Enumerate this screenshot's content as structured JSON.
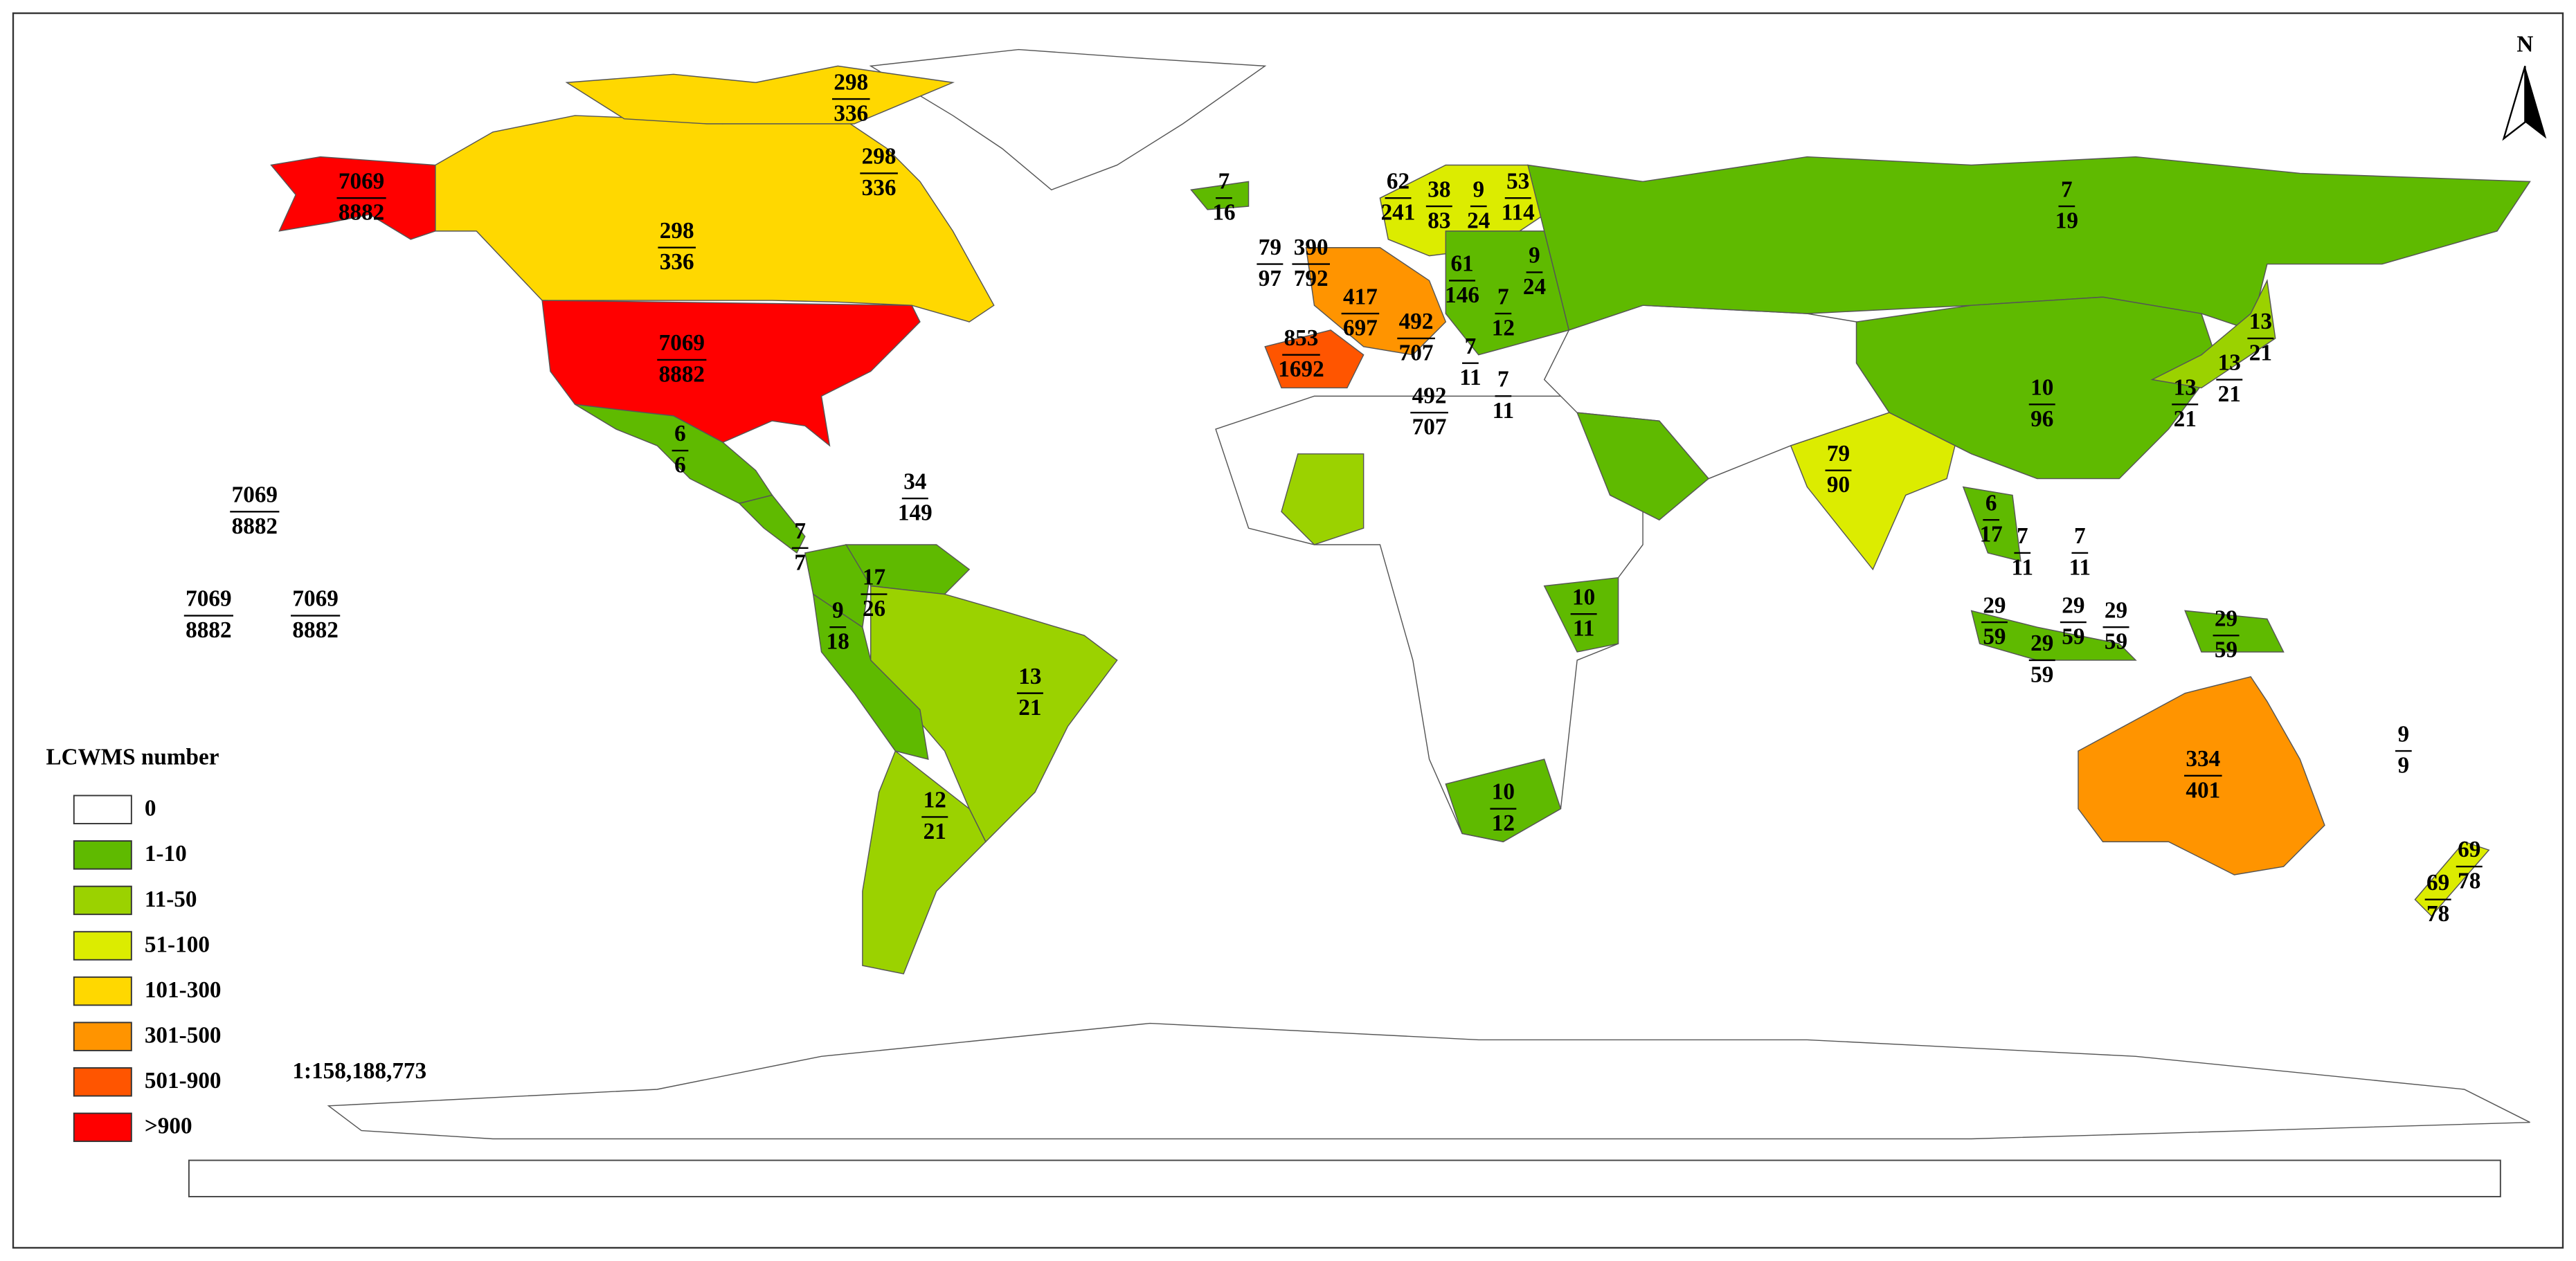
{
  "north": "N",
  "scale": "1:158,188,773",
  "legend": {
    "title": "LCWMS number",
    "items": [
      {
        "label": "0",
        "color": "#ffffff"
      },
      {
        "label": "1-10",
        "color": "#5fba00"
      },
      {
        "label": "11-50",
        "color": "#9bd200"
      },
      {
        "label": "51-100",
        "color": "#dcec00"
      },
      {
        "label": "101-300",
        "color": "#ffd800"
      },
      {
        "label": "301-500",
        "color": "#ff9400"
      },
      {
        "label": "501-900",
        "color": "#ff5500"
      },
      {
        "label": ">900",
        "color": "#ff0000"
      }
    ]
  },
  "labels": [
    {
      "numerator": 7069,
      "denominator": 8882
    },
    {
      "numerator": 298,
      "denominator": 336
    },
    {
      "numerator": 298,
      "denominator": 336
    },
    {
      "numerator": 298,
      "denominator": 336
    },
    {
      "numerator": 7069,
      "denominator": 8882
    },
    {
      "numerator": 7069,
      "denominator": 8882
    },
    {
      "numerator": 7069,
      "denominator": 8882
    },
    {
      "numerator": 7069,
      "denominator": 8882
    },
    {
      "numerator": 6,
      "denominator": 6
    },
    {
      "numerator": 34,
      "denominator": 149
    },
    {
      "numerator": 7,
      "denominator": 7
    },
    {
      "numerator": 9,
      "denominator": 18
    },
    {
      "numerator": 17,
      "denominator": 26
    },
    {
      "numerator": 13,
      "denominator": 21
    },
    {
      "numerator": 12,
      "denominator": 21
    },
    {
      "numerator": 7,
      "denominator": 16
    },
    {
      "numerator": 62,
      "denominator": 241
    },
    {
      "numerator": 38,
      "denominator": 83
    },
    {
      "numerator": 9,
      "denominator": 24
    },
    {
      "numerator": 53,
      "denominator": 114
    },
    {
      "numerator": 9,
      "denominator": 24
    },
    {
      "numerator": 61,
      "denominator": 146
    },
    {
      "numerator": 7,
      "denominator": 12
    },
    {
      "numerator": 79,
      "denominator": 97
    },
    {
      "numerator": 390,
      "denominator": 792
    },
    {
      "numerator": 417,
      "denominator": 697
    },
    {
      "numerator": 492,
      "denominator": 707
    },
    {
      "numerator": 853,
      "denominator": 1692
    },
    {
      "numerator": 7,
      "denominator": 11
    },
    {
      "numerator": 7,
      "denominator": 11
    },
    {
      "numerator": 492,
      "denominator": 707
    },
    {
      "numerator": 7,
      "denominator": 19
    },
    {
      "numerator": 13,
      "denominator": 21
    },
    {
      "numerator": 13,
      "denominator": 21
    },
    {
      "numerator": 13,
      "denominator": 21
    },
    {
      "numerator": 10,
      "denominator": 96
    },
    {
      "numerator": 79,
      "denominator": 90
    },
    {
      "numerator": 6,
      "denominator": 17
    },
    {
      "numerator": 7,
      "denominator": 11
    },
    {
      "numerator": 7,
      "denominator": 11
    },
    {
      "numerator": 10,
      "denominator": 11
    },
    {
      "numerator": 29,
      "denominator": 59
    },
    {
      "numerator": 29,
      "denominator": 59
    },
    {
      "numerator": 29,
      "denominator": 59
    },
    {
      "numerator": 29,
      "denominator": 59
    },
    {
      "numerator": 29,
      "denominator": 59
    },
    {
      "numerator": 10,
      "denominator": 12
    },
    {
      "numerator": 334,
      "denominator": 401
    },
    {
      "numerator": 9,
      "denominator": 9
    },
    {
      "numerator": 69,
      "denominator": 78
    },
    {
      "numerator": 69,
      "denominator": 78
    }
  ]
}
